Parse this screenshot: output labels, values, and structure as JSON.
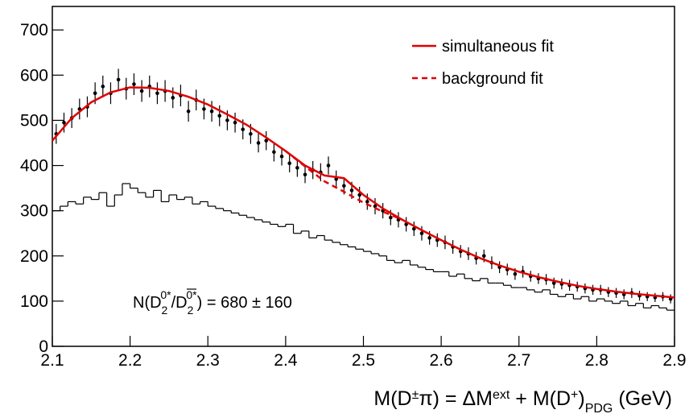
{
  "chart_data": {
    "type": "scatter",
    "x_label": [
      "M(D",
      "±",
      "π) = ΔM",
      "ext",
      " + M(D",
      "+",
      ")",
      "PDG",
      " (GeV)"
    ],
    "annotation": [
      "N(D",
      "2",
      "0*",
      "/",
      "D",
      "2",
      "0*",
      ") = 680 ± 160"
    ],
    "xlim": [
      2.1,
      2.9
    ],
    "ylim": [
      0,
      752
    ],
    "xticks": [
      2.1,
      2.2,
      2.3,
      2.4,
      2.5,
      2.6,
      2.7,
      2.8,
      2.9
    ],
    "yticks": [
      0,
      100,
      200,
      300,
      400,
      500,
      600,
      700
    ],
    "legend": "top-right",
    "series": [
      {
        "style": "points",
        "color": "#000000",
        "x": [
          2.105,
          2.115,
          2.125,
          2.135,
          2.145,
          2.155,
          2.165,
          2.175,
          2.185,
          2.195,
          2.205,
          2.215,
          2.225,
          2.235,
          2.245,
          2.255,
          2.265,
          2.275,
          2.285,
          2.295,
          2.305,
          2.315,
          2.325,
          2.335,
          2.345,
          2.355,
          2.365,
          2.375,
          2.385,
          2.395,
          2.405,
          2.415,
          2.425,
          2.435,
          2.445,
          2.455,
          2.465,
          2.475,
          2.485,
          2.495,
          2.505,
          2.515,
          2.525,
          2.535,
          2.545,
          2.555,
          2.565,
          2.575,
          2.585,
          2.595,
          2.605,
          2.615,
          2.625,
          2.635,
          2.645,
          2.655,
          2.665,
          2.675,
          2.685,
          2.695,
          2.705,
          2.715,
          2.725,
          2.735,
          2.745,
          2.755,
          2.765,
          2.775,
          2.785,
          2.795,
          2.805,
          2.815,
          2.825,
          2.835,
          2.845,
          2.855,
          2.865,
          2.875,
          2.885,
          2.895
        ],
        "values": [
          470,
          495,
          505,
          525,
          530,
          560,
          575,
          560,
          590,
          570,
          580,
          565,
          575,
          560,
          565,
          550,
          555,
          520,
          545,
          525,
          520,
          510,
          500,
          495,
          480,
          470,
          450,
          455,
          430,
          420,
          405,
          395,
          380,
          390,
          385,
          400,
          370,
          355,
          345,
          335,
          320,
          310,
          300,
          285,
          280,
          270,
          260,
          250,
          240,
          235,
          230,
          220,
          210,
          205,
          195,
          200,
          185,
          175,
          170,
          160,
          165,
          155,
          150,
          148,
          140,
          138,
          135,
          132,
          128,
          125,
          125,
          120,
          118,
          115,
          118,
          112,
          110,
          108,
          110,
          105
        ],
        "errors": [
          22,
          22,
          22,
          23,
          23,
          24,
          24,
          24,
          24,
          24,
          24,
          24,
          24,
          24,
          24,
          23,
          24,
          23,
          23,
          23,
          23,
          23,
          22,
          22,
          22,
          22,
          21,
          21,
          21,
          20,
          20,
          20,
          19,
          20,
          20,
          20,
          19,
          19,
          19,
          18,
          18,
          18,
          17,
          17,
          17,
          16,
          16,
          16,
          15,
          15,
          15,
          15,
          14,
          14,
          14,
          14,
          14,
          13,
          13,
          13,
          13,
          12,
          12,
          12,
          12,
          12,
          12,
          11,
          11,
          11,
          11,
          11,
          11,
          11,
          11,
          11,
          10,
          10,
          10,
          10
        ]
      },
      {
        "style": "step",
        "color": "#000000",
        "bins": [
          2.1,
          2.11,
          2.12,
          2.13,
          2.14,
          2.15,
          2.16,
          2.17,
          2.18,
          2.19,
          2.2,
          2.21,
          2.22,
          2.23,
          2.24,
          2.25,
          2.26,
          2.27,
          2.28,
          2.29,
          2.3,
          2.31,
          2.32,
          2.33,
          2.34,
          2.35,
          2.36,
          2.37,
          2.38,
          2.39,
          2.4,
          2.41,
          2.42,
          2.43,
          2.44,
          2.45,
          2.46,
          2.47,
          2.48,
          2.49,
          2.5,
          2.51,
          2.52,
          2.53,
          2.54,
          2.55,
          2.56,
          2.57,
          2.58,
          2.59,
          2.6,
          2.61,
          2.62,
          2.63,
          2.64,
          2.65,
          2.66,
          2.67,
          2.68,
          2.69,
          2.7,
          2.71,
          2.72,
          2.73,
          2.74,
          2.75,
          2.76,
          2.77,
          2.78,
          2.79,
          2.8,
          2.81,
          2.82,
          2.83,
          2.84,
          2.85,
          2.86,
          2.87,
          2.88,
          2.89,
          2.9
        ],
        "values": [
          300,
          310,
          320,
          315,
          330,
          325,
          340,
          310,
          335,
          360,
          350,
          340,
          330,
          345,
          320,
          335,
          325,
          330,
          315,
          320,
          310,
          305,
          300,
          295,
          290,
          285,
          280,
          275,
          270,
          265,
          270,
          250,
          255,
          240,
          245,
          235,
          230,
          225,
          220,
          215,
          210,
          205,
          200,
          190,
          185,
          190,
          180,
          175,
          170,
          165,
          165,
          155,
          160,
          150,
          145,
          150,
          140,
          140,
          135,
          130,
          130,
          125,
          120,
          125,
          115,
          110,
          115,
          105,
          110,
          100,
          105,
          100,
          95,
          100,
          90,
          95,
          85,
          90,
          85,
          80
        ]
      },
      {
        "name": "simultaneous fit",
        "style": "line",
        "color": "#e00000",
        "x": [
          2.1,
          2.125,
          2.15,
          2.175,
          2.2,
          2.225,
          2.25,
          2.275,
          2.3,
          2.325,
          2.35,
          2.375,
          2.4,
          2.425,
          2.45,
          2.475,
          2.5,
          2.525,
          2.55,
          2.575,
          2.6,
          2.625,
          2.65,
          2.675,
          2.7,
          2.725,
          2.75,
          2.775,
          2.8,
          2.825,
          2.85,
          2.875,
          2.9
        ],
        "values": [
          455,
          505,
          540,
          562,
          573,
          572,
          565,
          552,
          535,
          513,
          490,
          462,
          432,
          400,
          378,
          372,
          335,
          305,
          280,
          257,
          235,
          214,
          195,
          179,
          165,
          153,
          143,
          134,
          127,
          121,
          116,
          112,
          108
        ]
      },
      {
        "name": "background fit",
        "style": "dashed",
        "color": "#e00000",
        "x": [
          2.4,
          2.425,
          2.45,
          2.475,
          2.5,
          2.525,
          2.55
        ],
        "values": [
          432,
          398,
          365,
          342,
          318,
          298,
          280
        ]
      }
    ]
  }
}
